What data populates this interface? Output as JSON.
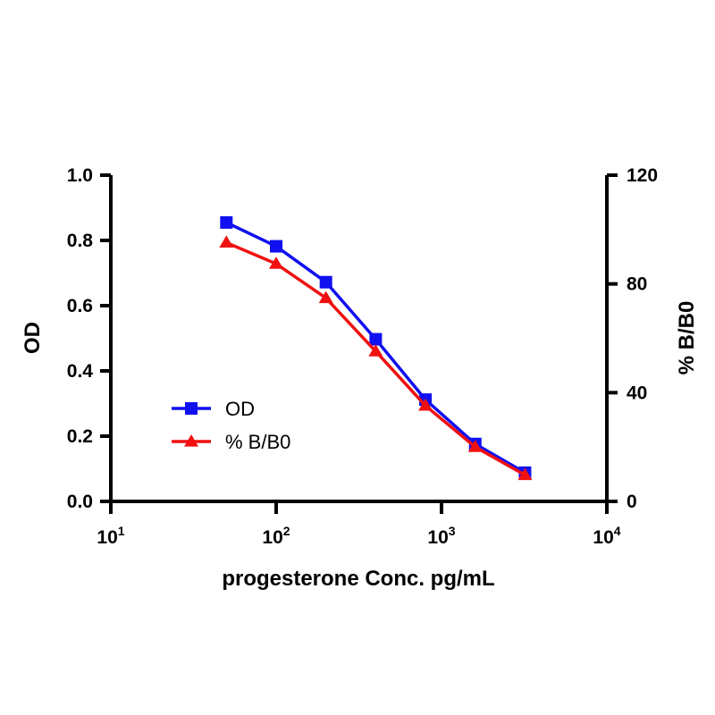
{
  "chart_data": {
    "type": "line",
    "title": "",
    "xlabel": "progesterone Conc. pg/mL",
    "ylabel": "OD",
    "y2label": "% B/B0",
    "xscale": "log",
    "xlim": [
      10,
      10000
    ],
    "x_ticks": [
      {
        "value": 10,
        "base": "10",
        "exp": "1"
      },
      {
        "value": 100,
        "base": "10",
        "exp": "2"
      },
      {
        "value": 1000,
        "base": "10",
        "exp": "3"
      },
      {
        "value": 10000,
        "base": "10",
        "exp": "4"
      }
    ],
    "ylim": [
      0,
      1.0
    ],
    "y_ticks": [
      "0.0",
      "0.2",
      "0.4",
      "0.6",
      "0.8",
      "1.0"
    ],
    "y2lim": [
      0,
      120
    ],
    "y2_ticks": [
      "0",
      "40",
      "80",
      "120"
    ],
    "x": [
      50,
      100,
      200,
      400,
      800,
      1600,
      3200
    ],
    "series": [
      {
        "name": "OD",
        "axis": "left",
        "color": "#1010f0",
        "marker": "square",
        "values": [
          0.855,
          0.782,
          0.672,
          0.497,
          0.312,
          0.176,
          0.088
        ]
      },
      {
        "name": "% B/B0",
        "axis": "right",
        "color": "#f01010",
        "marker": "triangle",
        "values": [
          95.2,
          87.4,
          74.8,
          55.2,
          35.2,
          20.0,
          9.7
        ]
      }
    ],
    "grid": false,
    "legend": "center-left"
  }
}
